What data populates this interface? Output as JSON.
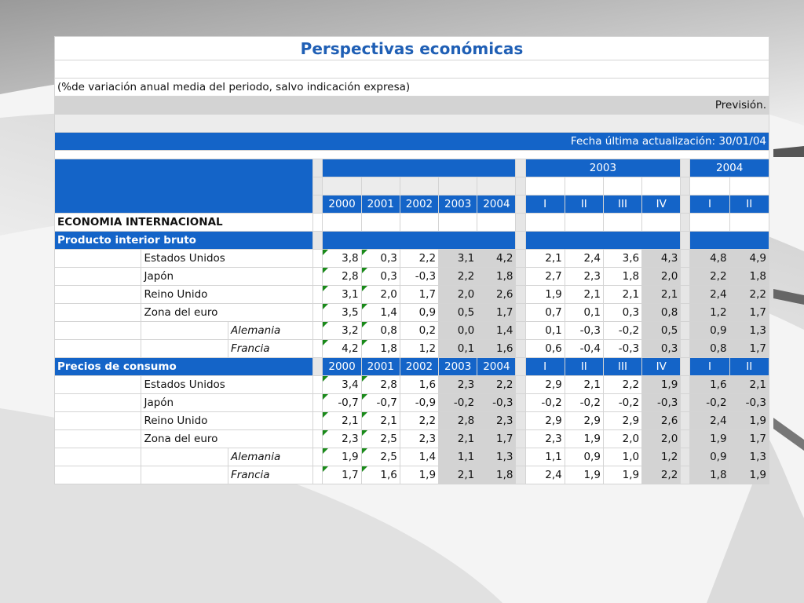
{
  "title": "Perspectivas económicas",
  "subtitle": "(%de variación anual media del periodo, salvo indicación expresa)",
  "forecast_label": "Previsión.",
  "update_label": "Fecha última actualización: 30/01/04",
  "header": {
    "year_2003": "2003",
    "year_2004": "2004",
    "years": [
      "2000",
      "2001",
      "2002",
      "2003",
      "2004"
    ],
    "q2003": [
      "I",
      "II",
      "III",
      "IV"
    ],
    "q2004": [
      "I",
      "II"
    ]
  },
  "section_main": "ECONOMIA INTERNACIONAL",
  "gdp": {
    "label": "Producto interior bruto",
    "rows": [
      {
        "indent": 1,
        "name": "Estados Unidos",
        "years": [
          "3,8",
          "0,3",
          "2,2",
          "3,1",
          "4,2"
        ],
        "q2003": [
          "2,1",
          "2,4",
          "3,6",
          "4,3"
        ],
        "q2004": [
          "4,8",
          "4,9"
        ]
      },
      {
        "indent": 1,
        "name": "Japón",
        "years": [
          "2,8",
          "0,3",
          "-0,3",
          "2,2",
          "1,8"
        ],
        "q2003": [
          "2,7",
          "2,3",
          "1,8",
          "2,0"
        ],
        "q2004": [
          "2,2",
          "1,8"
        ]
      },
      {
        "indent": 1,
        "name": "Reino Unido",
        "years": [
          "3,1",
          "2,0",
          "1,7",
          "2,0",
          "2,6"
        ],
        "q2003": [
          "1,9",
          "2,1",
          "2,1",
          "2,1"
        ],
        "q2004": [
          "2,4",
          "2,2"
        ]
      },
      {
        "indent": 1,
        "name": "Zona del euro",
        "years": [
          "3,5",
          "1,4",
          "0,9",
          "0,5",
          "1,7"
        ],
        "q2003": [
          "0,7",
          "0,1",
          "0,3",
          "0,8"
        ],
        "q2004": [
          "1,2",
          "1,7"
        ]
      },
      {
        "indent": 2,
        "name": "Alemania",
        "years": [
          "3,2",
          "0,8",
          "0,2",
          "0,0",
          "1,4"
        ],
        "q2003": [
          "0,1",
          "-0,3",
          "-0,2",
          "0,5"
        ],
        "q2004": [
          "0,9",
          "1,3"
        ]
      },
      {
        "indent": 2,
        "name": "Francia",
        "years": [
          "4,2",
          "1,8",
          "1,2",
          "0,1",
          "1,6"
        ],
        "q2003": [
          "0,6",
          "-0,4",
          "-0,3",
          "0,3"
        ],
        "q2004": [
          "0,8",
          "1,7"
        ]
      }
    ]
  },
  "cpi": {
    "label": "Precios de consumo",
    "rows": [
      {
        "indent": 1,
        "name": "Estados Unidos",
        "years": [
          "3,4",
          "2,8",
          "1,6",
          "2,3",
          "2,2"
        ],
        "q2003": [
          "2,9",
          "2,1",
          "2,2",
          "1,9"
        ],
        "q2004": [
          "1,6",
          "2,1"
        ]
      },
      {
        "indent": 1,
        "name": "Japón",
        "years": [
          "-0,7",
          "-0,7",
          "-0,9",
          "-0,2",
          "-0,3"
        ],
        "q2003": [
          "-0,2",
          "-0,2",
          "-0,2",
          "-0,3"
        ],
        "q2004": [
          "-0,2",
          "-0,3"
        ]
      },
      {
        "indent": 1,
        "name": "Reino Unido",
        "years": [
          "2,1",
          "2,1",
          "2,2",
          "2,8",
          "2,3"
        ],
        "q2003": [
          "2,9",
          "2,9",
          "2,9",
          "2,6"
        ],
        "q2004": [
          "2,4",
          "1,9"
        ]
      },
      {
        "indent": 1,
        "name": "Zona del euro",
        "years": [
          "2,3",
          "2,5",
          "2,3",
          "2,1",
          "1,7"
        ],
        "q2003": [
          "2,3",
          "1,9",
          "2,0",
          "2,0"
        ],
        "q2004": [
          "1,9",
          "1,7"
        ]
      },
      {
        "indent": 2,
        "name": "Alemania",
        "years": [
          "1,9",
          "2,5",
          "1,4",
          "1,1",
          "1,3"
        ],
        "q2003": [
          "1,1",
          "0,9",
          "1,0",
          "1,2"
        ],
        "q2004": [
          "0,9",
          "1,3"
        ]
      },
      {
        "indent": 2,
        "name": "Francia",
        "years": [
          "1,7",
          "1,6",
          "1,9",
          "2,1",
          "1,8"
        ],
        "q2003": [
          "2,4",
          "1,9",
          "1,9",
          "2,2"
        ],
        "q2004": [
          "1,8",
          "1,9"
        ]
      }
    ]
  },
  "colors": {
    "accent_blue": "#1464c8",
    "title_blue": "#1f5fb5",
    "grey_cell": "#d3d3d3",
    "flag_green": "#1a8a1a"
  }
}
